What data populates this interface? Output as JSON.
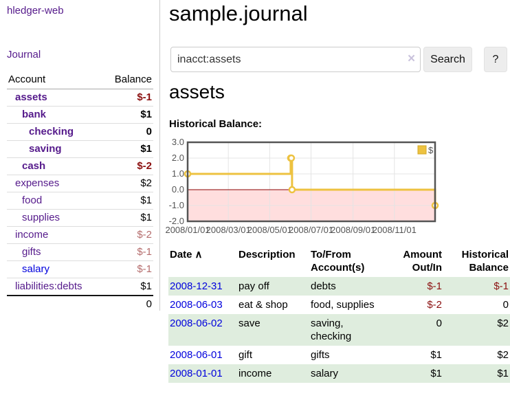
{
  "colors": {
    "link_purple": "#551a8b",
    "link_blue": "#0000dd",
    "negative_strong": "#8b1010",
    "negative_soft": "#b56d6d",
    "row_green": "#dfedde",
    "chart_line_gold": "#edc240",
    "chart_negative_band_pink": "#ffdede",
    "chart_zero_line_red": "#8b0000"
  },
  "app_title": "hledger-web",
  "sidebar": {
    "journal_link": "Journal",
    "accounts": {
      "col_account": "Account",
      "col_balance": "Balance",
      "rows": [
        {
          "account": "assets",
          "balance": "$-1",
          "indent": 1,
          "bold": true,
          "neg": "strong"
        },
        {
          "account": "bank",
          "balance": "$1",
          "indent": 2,
          "bold": true
        },
        {
          "account": "checking",
          "balance": "0",
          "indent": 3,
          "bold": true
        },
        {
          "account": "saving",
          "balance": "$1",
          "indent": 3,
          "bold": true
        },
        {
          "account": "cash",
          "balance": "$-2",
          "indent": 2,
          "bold": true,
          "neg": "strong"
        },
        {
          "account": "expenses",
          "balance": "$2",
          "indent": 1
        },
        {
          "account": "food",
          "balance": "$1",
          "indent": 2
        },
        {
          "account": "supplies",
          "balance": "$1",
          "indent": 2
        },
        {
          "account": "income",
          "balance": "$-2",
          "indent": 1,
          "neg": "soft"
        },
        {
          "account": "gifts",
          "balance": "$-1",
          "indent": 2,
          "neg": "soft"
        },
        {
          "account": "salary",
          "balance": "$-1",
          "indent": 2,
          "neg": "soft",
          "link": "blue"
        },
        {
          "account": "liabilities:debts",
          "balance": "$1",
          "indent": 1
        }
      ],
      "total": "0"
    }
  },
  "main": {
    "journal_title": "sample.journal",
    "search_value": "inacct:assets",
    "clear_icon": "×",
    "search_button": "Search",
    "help_button": "?",
    "account_heading": "assets",
    "section_label": "Historical Balance:"
  },
  "chart_data": {
    "type": "line",
    "title": "Historical Balance",
    "step": true,
    "grid": true,
    "legend_position": "top-right",
    "negative_region_shaded": true,
    "ylim": [
      -2,
      3
    ],
    "y_ticks": [
      3,
      2,
      1,
      0,
      -1,
      -2
    ],
    "y_tick_labels": [
      "3.0",
      "2.0",
      "1.0",
      "0.0",
      "-1.0",
      "-2.0"
    ],
    "x_tick_labels": [
      "2008/01/01",
      "2008/03/01",
      "2008/05/01",
      "2008/07/01",
      "2008/09/01",
      "2008/11/01"
    ],
    "x_range": [
      "2008-01-01",
      "2008-12-31"
    ],
    "series": [
      {
        "name": "$",
        "color": "#edc240",
        "points": [
          [
            "2008-01-01",
            1
          ],
          [
            "2008-06-01",
            2
          ],
          [
            "2008-06-02",
            2
          ],
          [
            "2008-06-03",
            0
          ],
          [
            "2008-12-31",
            -1
          ]
        ]
      }
    ]
  },
  "register": {
    "headers": {
      "date": "Date",
      "description": "Description",
      "accounts": "To/From Account(s)",
      "amount": "Amount Out/In",
      "balance": "Historical Balance"
    },
    "sort_arrow": "∧",
    "rows": [
      {
        "date": "2008-12-31",
        "description": "pay off",
        "accounts": "debts",
        "amount": "$-1",
        "balance": "$-1",
        "shaded": true
      },
      {
        "date": "2008-06-03",
        "description": "eat & shop",
        "accounts": "food, supplies",
        "amount": "$-2",
        "balance": "0",
        "shaded": false
      },
      {
        "date": "2008-06-02",
        "description": "save",
        "accounts": "saving, checking",
        "amount": "0",
        "balance": "$2",
        "shaded": true
      },
      {
        "date": "2008-06-01",
        "description": "gift",
        "accounts": "gifts",
        "amount": "$1",
        "balance": "$2",
        "shaded": false
      },
      {
        "date": "2008-01-01",
        "description": "income",
        "accounts": "salary",
        "amount": "$1",
        "balance": "$1",
        "shaded": true
      }
    ]
  }
}
